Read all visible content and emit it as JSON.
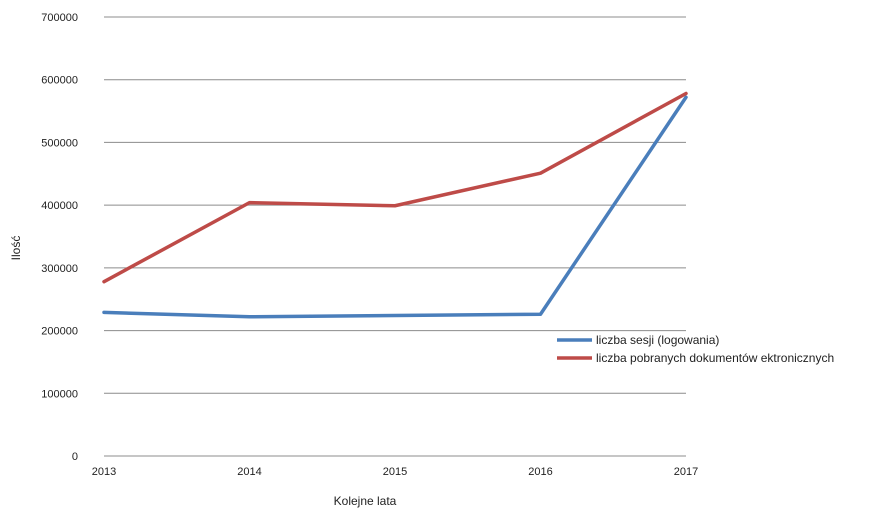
{
  "chart_data": {
    "type": "line",
    "x": [
      "2013",
      "2014",
      "2015",
      "2016",
      "2017"
    ],
    "xlabel": "Kolejne lata",
    "ylabel": "Ilość",
    "ylim": [
      0,
      700000
    ],
    "yticks": [
      "0",
      "100000",
      "200000",
      "300000",
      "400000",
      "500000",
      "600000",
      "700000"
    ],
    "grid": true,
    "legend_position": "right",
    "series": [
      {
        "name": "liczba sesji (logowania)",
        "color": "#4a7ebb",
        "values": [
          229000,
          222000,
          224000,
          226000,
          572000
        ]
      },
      {
        "name": "liczba pobranych dokumentów ektronicznych",
        "color": "#be4b48",
        "values": [
          278000,
          404000,
          399000,
          451000,
          578000
        ]
      }
    ]
  }
}
